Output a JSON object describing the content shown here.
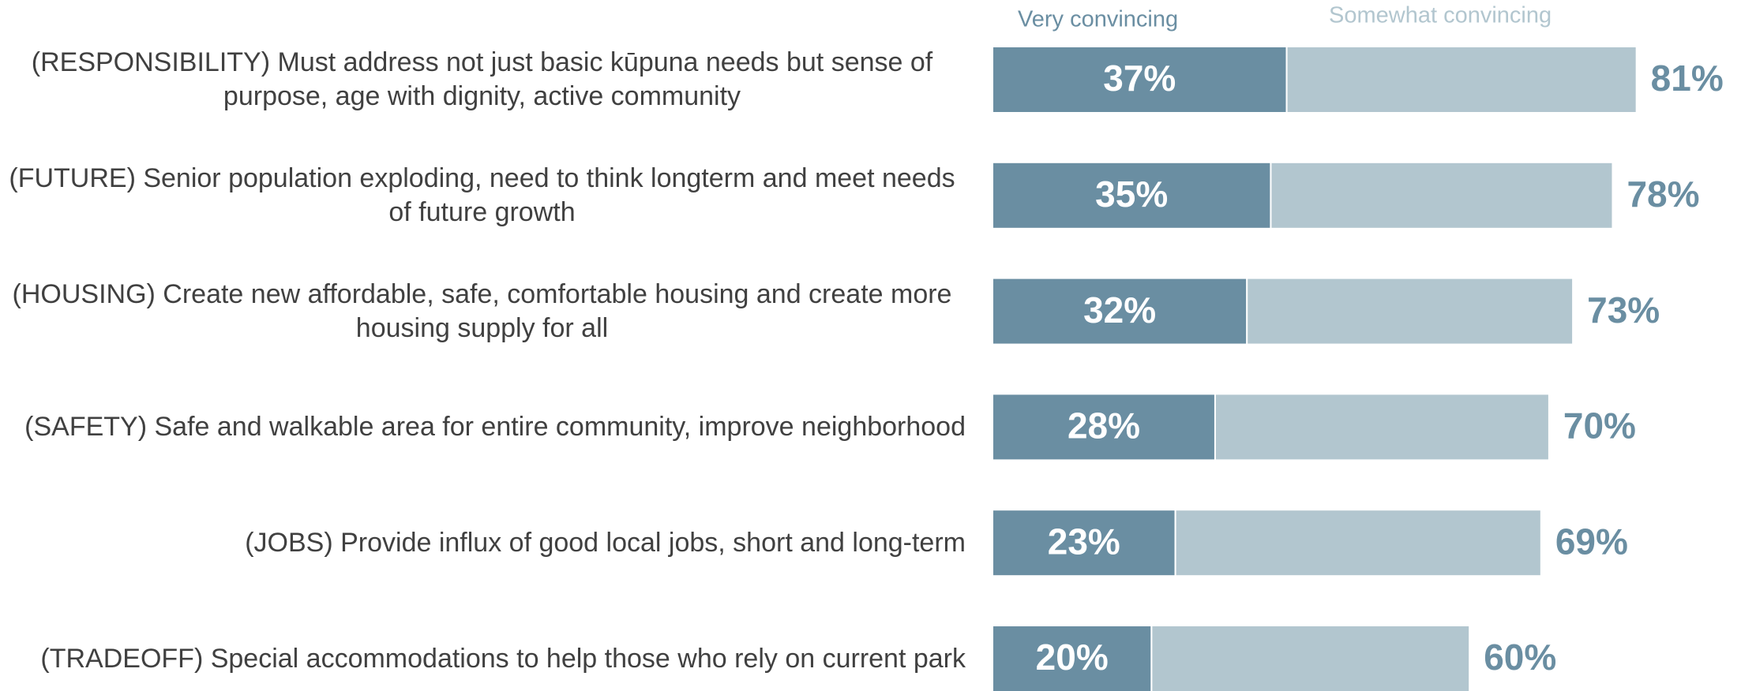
{
  "chart_data": {
    "type": "stacked-bar",
    "categories": [
      "(RESPONSIBILITY) Must address not just basic kūpuna needs but sense of purpose, age with dignity, active community",
      "(FUTURE) Senior population exploding, need to think longterm and meet needs of future growth",
      "(HOUSING) Create new affordable, safe, comfortable housing and create more housing supply for all",
      "(SAFETY) Safe and walkable area for entire community, improve neighborhood",
      "(JOBS) Provide influx of good local jobs, short and long-term",
      "(TRADEOFF) Special accommodations to help those who rely on current park"
    ],
    "series": [
      {
        "name": "Very convincing",
        "color": "#6a8ea2",
        "values": [
          37,
          35,
          32,
          28,
          23,
          20
        ],
        "value_labels": [
          "37%",
          "35%",
          "32%",
          "28%",
          "23%",
          "20%"
        ]
      },
      {
        "name": "Somewhat convincing",
        "color": "#b2c6cf",
        "values": [
          44,
          43,
          41,
          42,
          46,
          40
        ]
      }
    ],
    "totals": [
      81,
      78,
      73,
      70,
      69,
      60
    ],
    "total_labels": [
      "81%",
      "78%",
      "73%",
      "70%",
      "69%",
      "60%"
    ]
  }
}
